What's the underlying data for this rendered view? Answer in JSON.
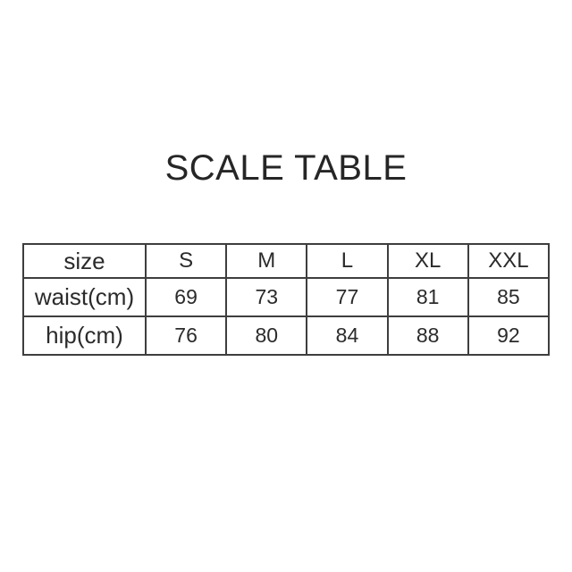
{
  "page": {
    "background": "#ffffff",
    "text_color": "#2b2b2b",
    "border_color": "#3e3e3e",
    "title": "SCALE TABLE"
  },
  "chart_data": {
    "type": "table",
    "title": "SCALE TABLE",
    "columns": [
      "size",
      "S",
      "M",
      "L",
      "XL",
      "XXL"
    ],
    "rows": [
      {
        "label": "waist(cm)",
        "values": [
          69,
          73,
          77,
          81,
          85
        ]
      },
      {
        "label": "hip(cm)",
        "values": [
          76,
          80,
          84,
          88,
          92
        ]
      }
    ],
    "layout_hints": {
      "grid": "full-borders",
      "header_row": true,
      "first_column_is_row_labels": true
    }
  }
}
